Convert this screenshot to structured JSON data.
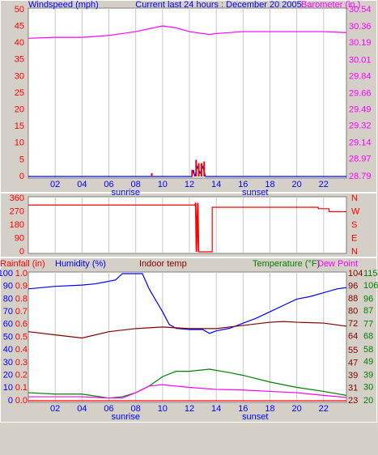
{
  "chart_data": [
    {
      "type": "line",
      "title": "Current last 24 hours : December 20 2005",
      "xlim": [
        0,
        23.7
      ],
      "xticks": [
        {
          "value": 2,
          "label": "02"
        },
        {
          "value": 4,
          "label": "04"
        },
        {
          "value": 6,
          "label": "06"
        },
        {
          "value": 8,
          "label": "08"
        },
        {
          "value": 10,
          "label": "10"
        },
        {
          "value": 12,
          "label": "12"
        },
        {
          "value": 14,
          "label": "14"
        },
        {
          "value": 16,
          "label": "16"
        },
        {
          "value": 18,
          "label": "18"
        },
        {
          "value": 20,
          "label": "20"
        },
        {
          "value": 22,
          "label": "22"
        }
      ],
      "annotations": [
        {
          "text": "sunrise",
          "x": 7.25
        },
        {
          "text": "sunset",
          "x": 16.9
        }
      ],
      "axes": [
        {
          "color": "#ff0000",
          "lim": [
            0,
            50
          ],
          "ticks": [
            0,
            5,
            10,
            15,
            20,
            25,
            30,
            35,
            40,
            45,
            50
          ]
        },
        {
          "color": "#ff00ff",
          "lim": [
            28.79,
            30.54
          ],
          "ticks": [
            28.79,
            28.97,
            29.14,
            29.32,
            29.49,
            29.66,
            29.84,
            30.01,
            30.19,
            30.36,
            30.54
          ]
        }
      ],
      "series": [
        {
          "name": "Windspeed (mph)",
          "color": "#0000ff",
          "axis": 0,
          "x": [
            0,
            12.2,
            12.3,
            12.4,
            12.6,
            12.8,
            13.0,
            13.2,
            23.7
          ],
          "values": [
            0,
            0,
            2,
            0,
            3,
            1,
            3,
            0,
            0
          ]
        },
        {
          "color": "#ff0000",
          "axis": 0,
          "style": "spikes",
          "x": [
            9.2,
            12.2,
            12.5,
            12.7,
            12.9,
            13.1
          ],
          "values": [
            1,
            2,
            5,
            4,
            4,
            4.5
          ]
        },
        {
          "name": "Barometer (in.)",
          "color": "#ff00ff",
          "axis": 1,
          "x": [
            0,
            2,
            4,
            6,
            8,
            10,
            11,
            12,
            13,
            13.5,
            14,
            16,
            18,
            20,
            22,
            23.7
          ],
          "values": [
            30.24,
            30.25,
            30.25,
            30.27,
            30.31,
            30.37,
            30.35,
            30.31,
            30.29,
            30.28,
            30.29,
            30.31,
            30.31,
            30.31,
            30.31,
            30.3
          ]
        }
      ]
    },
    {
      "type": "line",
      "xlim": [
        0,
        23.7
      ],
      "axes": [
        {
          "color": "#ff0000",
          "lim": [
            0,
            360
          ],
          "ticks": [
            0,
            90,
            180,
            270,
            360
          ]
        },
        {
          "color": "#ff0000",
          "lim": [
            0,
            360
          ],
          "ticks": [
            {
              "value": 0,
              "label": "N"
            },
            {
              "value": 90,
              "label": "E"
            },
            {
              "value": 180,
              "label": "S"
            },
            {
              "value": 270,
              "label": "W"
            },
            {
              "value": 360,
              "label": "N"
            }
          ]
        }
      ],
      "series": [
        {
          "color": "#ff0000",
          "axis": 0,
          "x": [
            0,
            12.4,
            12.45,
            12.5,
            12.55,
            12.6,
            12.65,
            12.7,
            13.7,
            13.7,
            21.6,
            21.6,
            22.4,
            22.4,
            23.7
          ],
          "values": [
            315,
            315,
            330,
            0,
            330,
            0,
            330,
            0,
            0,
            300,
            300,
            290,
            290,
            270,
            270
          ]
        }
      ]
    },
    {
      "type": "line",
      "xlim": [
        0,
        23.7
      ],
      "xticks": [
        {
          "value": 2,
          "label": "02"
        },
        {
          "value": 4,
          "label": "04"
        },
        {
          "value": 6,
          "label": "06"
        },
        {
          "value": 8,
          "label": "08"
        },
        {
          "value": 10,
          "label": "10"
        },
        {
          "value": 12,
          "label": "12"
        },
        {
          "value": 14,
          "label": "14"
        },
        {
          "value": 16,
          "label": "16"
        },
        {
          "value": 18,
          "label": "18"
        },
        {
          "value": 20,
          "label": "20"
        },
        {
          "value": 22,
          "label": "22"
        }
      ],
      "annotations": [
        {
          "text": "sunrise",
          "x": 7.25
        },
        {
          "text": "sunset",
          "x": 16.9
        }
      ],
      "axes": [
        {
          "color": "#0000ff",
          "lim": [
            0,
            100
          ],
          "ticks": [
            0,
            10,
            20,
            30,
            40,
            50,
            60,
            70,
            80,
            90,
            100
          ]
        },
        {
          "color": "#ff0000",
          "lim": [
            0,
            1
          ],
          "ticks": [
            {
              "value": 0,
              "label": "0.0"
            },
            0.1,
            0.2,
            0.3,
            0.4,
            0.5,
            0.6,
            0.7,
            0.8,
            0.9,
            {
              "value": 1,
              "label": "1.0"
            }
          ]
        },
        {
          "color": "#800000",
          "lim": [
            23,
            104
          ],
          "ticks": [
            23,
            31,
            39,
            47,
            55,
            64,
            72,
            80,
            88,
            96,
            104
          ]
        },
        {
          "color": "#008000",
          "lim": [
            20,
            115
          ],
          "ticks": [
            20,
            30,
            39,
            49,
            58,
            68,
            77,
            87,
            96,
            106,
            115
          ]
        }
      ],
      "series": [
        {
          "name": "Rainfall (in)",
          "color": "#ff0000",
          "axis": 1,
          "x": [
            0,
            23.7
          ],
          "values": [
            0,
            0
          ]
        },
        {
          "name": "Humidity (%)",
          "color": "#0000ff",
          "axis": 0,
          "x": [
            0,
            2,
            4,
            5,
            6.5,
            7,
            8.5,
            9,
            10,
            10.5,
            11,
            12,
            13,
            13.5,
            14,
            15,
            16,
            17,
            18,
            19,
            20,
            21,
            22,
            23,
            23.7
          ],
          "values": [
            88,
            90,
            91,
            92,
            95,
            100,
            100,
            88,
            70,
            60,
            57,
            56,
            56,
            53,
            55,
            57,
            61,
            65,
            70,
            75,
            80,
            82,
            85,
            88,
            89
          ]
        },
        {
          "name": "Indoor temp",
          "color": "#800000",
          "axis": 2,
          "x": [
            0,
            2,
            4,
            6,
            8,
            10,
            12,
            14,
            16,
            18,
            19,
            20,
            22,
            23.7
          ],
          "values": [
            67,
            65,
            63,
            67,
            69,
            70,
            69,
            69,
            71,
            73,
            73.5,
            73,
            72.5,
            70.5
          ]
        },
        {
          "name": "Temperature (°F)",
          "color": "#008000",
          "axis": 3,
          "x": [
            0,
            2,
            4,
            6,
            7,
            8,
            9,
            10,
            11,
            12,
            13.5,
            15,
            16,
            18,
            20,
            22,
            23.7
          ],
          "values": [
            26,
            25,
            25,
            22,
            23,
            26,
            31,
            38,
            42,
            42,
            43.6,
            41,
            39,
            34,
            30,
            27,
            24
          ]
        },
        {
          "name": "Dew Point",
          "color": "#ff00ff",
          "axis": 3,
          "x": [
            0,
            2,
            4,
            6,
            7,
            8,
            9,
            10,
            12,
            14,
            16,
            18,
            20,
            22,
            23.7
          ],
          "values": [
            23,
            23,
            23,
            22,
            22,
            26,
            31,
            32,
            30,
            28.5,
            28,
            27,
            26,
            24,
            22.5
          ]
        }
      ]
    }
  ]
}
